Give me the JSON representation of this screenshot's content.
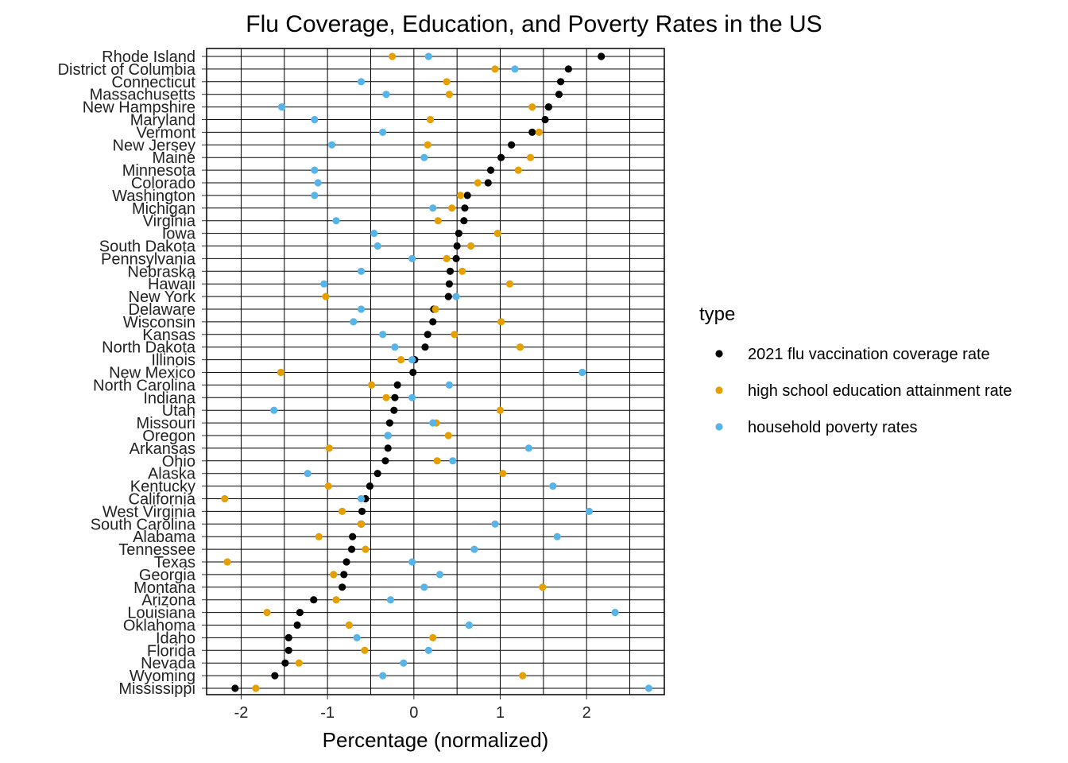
{
  "chart_data": {
    "type": "scatter",
    "title": "Flu Coverage, Education, and Poverty Rates in the US",
    "xlabel": "Percentage (normalized)",
    "ylabel": "",
    "xlim": [
      -2.4,
      2.9
    ],
    "x_ticks": [
      -2,
      -1,
      0,
      1,
      2
    ],
    "x_tick_labels": [
      "-2",
      "-1",
      "0",
      "1",
      "2"
    ],
    "grid": true,
    "legend_title": "type",
    "legend_position": "right",
    "categories": [
      "Rhode Island",
      "District of Columbia",
      "Connecticut",
      "Massachusetts",
      "New Hampshire",
      "Maryland",
      "Vermont",
      "New Jersey",
      "Maine",
      "Minnesota",
      "Colorado",
      "Washington",
      "Michigan",
      "Virginia",
      "Iowa",
      "South Dakota",
      "Pennsylvania",
      "Nebraska",
      "Hawaii",
      "New York",
      "Delaware",
      "Wisconsin",
      "Kansas",
      "North Dakota",
      "Illinois",
      "New Mexico",
      "North Carolina",
      "Indiana",
      "Utah",
      "Missouri",
      "Oregon",
      "Arkansas",
      "Ohio",
      "Alaska",
      "Kentucky",
      "California",
      "West Virginia",
      "South Carolina",
      "Alabama",
      "Tennessee",
      "Texas",
      "Georgia",
      "Montana",
      "Arizona",
      "Louisiana",
      "Oklahoma",
      "Idaho",
      "Florida",
      "Nevada",
      "Wyoming",
      "Mississippi"
    ],
    "series": [
      {
        "name": "2021 flu vaccination coverage rate",
        "color": "#000000",
        "values": [
          2.17,
          1.79,
          1.7,
          1.68,
          1.56,
          1.52,
          1.37,
          1.13,
          1.01,
          0.89,
          0.86,
          0.62,
          0.59,
          0.58,
          0.52,
          0.5,
          0.49,
          0.42,
          0.41,
          0.4,
          0.23,
          0.22,
          0.16,
          0.13,
          0.01,
          -0.01,
          -0.19,
          -0.22,
          -0.23,
          -0.28,
          -0.3,
          -0.3,
          -0.33,
          -0.42,
          -0.51,
          -0.56,
          -0.6,
          -0.61,
          -0.71,
          -0.72,
          -0.78,
          -0.81,
          -0.83,
          -1.16,
          -1.32,
          -1.35,
          -1.45,
          -1.45,
          -1.49,
          -1.61,
          -2.07
        ]
      },
      {
        "name": "high school education attainment rate",
        "color": "#E69F00",
        "values": [
          -0.25,
          0.94,
          0.38,
          0.41,
          1.37,
          0.19,
          1.45,
          0.16,
          1.35,
          1.21,
          0.74,
          0.54,
          0.44,
          0.28,
          0.97,
          0.66,
          0.38,
          0.56,
          1.11,
          -1.02,
          0.25,
          1.01,
          0.47,
          1.23,
          -0.15,
          -1.54,
          -0.49,
          -0.32,
          1.0,
          0.26,
          0.4,
          -0.98,
          0.27,
          1.03,
          -0.99,
          -2.19,
          -0.83,
          -0.61,
          -1.1,
          -0.56,
          -2.16,
          -0.93,
          1.49,
          -0.9,
          -1.7,
          -0.75,
          0.22,
          -0.57,
          -1.33,
          1.26,
          -1.83
        ]
      },
      {
        "name": "household poverty rates",
        "color": "#56B4E9",
        "values": [
          0.17,
          1.17,
          -0.61,
          -0.32,
          -1.53,
          -1.15,
          -0.36,
          -0.95,
          0.12,
          -1.15,
          -1.11,
          -1.15,
          0.22,
          -0.9,
          -0.46,
          -0.42,
          -0.02,
          -0.61,
          -1.04,
          0.49,
          -0.61,
          -0.7,
          -0.36,
          -0.22,
          -0.02,
          1.95,
          0.41,
          -0.02,
          -1.62,
          0.22,
          -0.3,
          1.33,
          0.45,
          -1.23,
          1.61,
          -0.61,
          2.03,
          0.94,
          1.66,
          0.7,
          -0.02,
          0.3,
          0.12,
          -0.27,
          2.33,
          0.64,
          -0.66,
          0.17,
          -0.12,
          -0.36,
          2.72
        ]
      }
    ]
  }
}
